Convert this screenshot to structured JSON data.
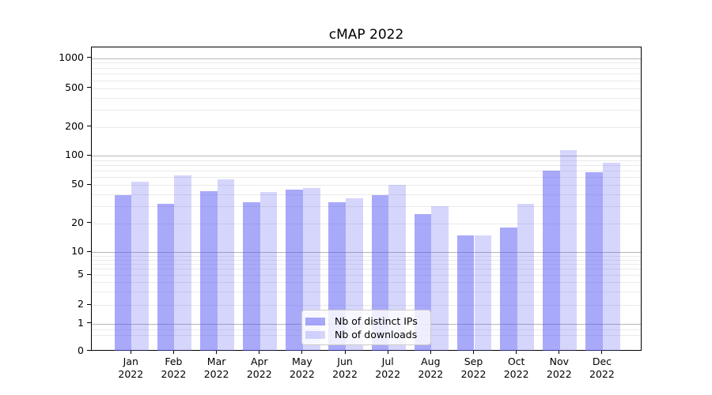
{
  "title": "cMAP 2022",
  "chart_data": {
    "type": "bar",
    "title": "cMAP 2022",
    "categories": [
      "Jan",
      "Feb",
      "Mar",
      "Apr",
      "May",
      "Jun",
      "Jul",
      "Aug",
      "Sep",
      "Oct",
      "Nov",
      "Dec"
    ],
    "category_year": "2022",
    "series": [
      {
        "name": "Nb of distinct IPs",
        "values": [
          39,
          32,
          43,
          33,
          45,
          33,
          39,
          25,
          15,
          18,
          70,
          68
        ],
        "color": "rgba(90,90,245,0.52)"
      },
      {
        "name": "Nb of downloads",
        "values": [
          54,
          63,
          57,
          42,
          46,
          36,
          50,
          30,
          15,
          32,
          115,
          85
        ],
        "color": "rgba(90,90,245,0.25)"
      }
    ],
    "y_ticks": [
      0,
      1,
      2,
      5,
      10,
      20,
      50,
      100,
      200,
      500,
      1000
    ],
    "ylim": [
      0,
      1000
    ],
    "yscale": "quasi-log (asinh)",
    "grid": true,
    "legend_position": "lower center",
    "colors": {
      "major_gridline": "#b5b5b5",
      "minor_gridline": "#eaeaea",
      "spine": "#000000",
      "legend_border": "#cccccc"
    }
  }
}
